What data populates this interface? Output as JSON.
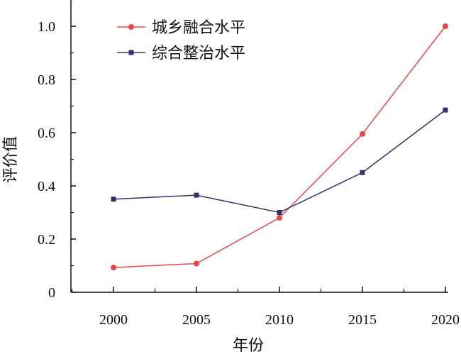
{
  "chart_data": {
    "type": "line",
    "title": "",
    "xlabel": "年份",
    "ylabel": "评价值",
    "categories": [
      "2000",
      "2005",
      "2010",
      "2015",
      "2020"
    ],
    "ylim": [
      0,
      1.1
    ],
    "yticks": [
      "0",
      "0.2",
      "0.4",
      "0.6",
      "0.8",
      "1.0"
    ],
    "yticks_values": [
      0,
      0.2,
      0.4,
      0.6,
      0.8,
      1.0
    ],
    "grid": false,
    "legend_position": "top-left",
    "series": [
      {
        "name": "城乡融合水平",
        "color": "#e8474b",
        "marker": "circle",
        "values": [
          0.093,
          0.108,
          0.28,
          0.595,
          1.0
        ]
      },
      {
        "name": "综合整治水平",
        "color": "#33306e",
        "marker": "square",
        "values": [
          0.35,
          0.365,
          0.3,
          0.45,
          0.685
        ]
      }
    ]
  }
}
